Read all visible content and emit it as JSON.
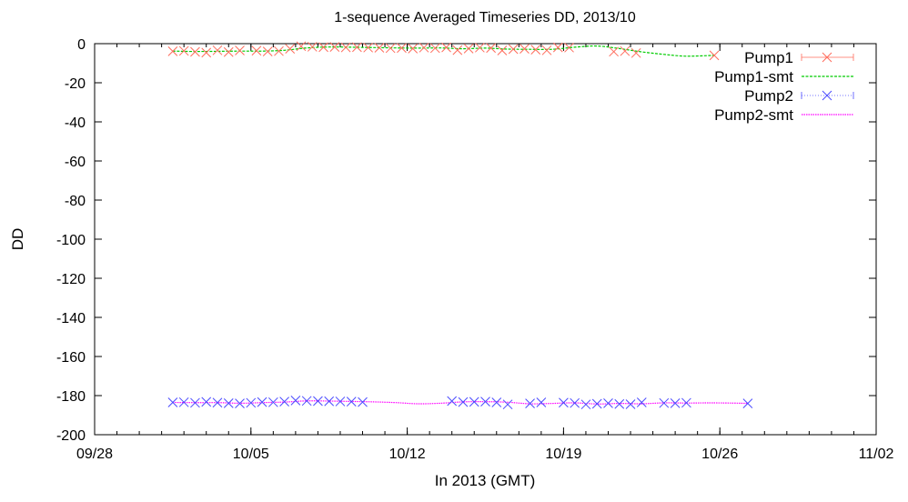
{
  "chart_data": {
    "type": "line",
    "title": "1-sequence Averaged Timeseries DD, 2013/10",
    "xlabel": "In 2013 (GMT)",
    "ylabel": "DD",
    "xlim": [
      "2013-09-28",
      "2013-11-02"
    ],
    "ylim": [
      -200,
      0
    ],
    "x_ticks": [
      {
        "date": "2013-09-28",
        "label": "09/28"
      },
      {
        "date": "2013-10-05",
        "label": "10/05"
      },
      {
        "date": "2013-10-12",
        "label": "10/12"
      },
      {
        "date": "2013-10-19",
        "label": "10/19"
      },
      {
        "date": "2013-10-26",
        "label": "10/26"
      },
      {
        "date": "2013-11-02",
        "label": "11/02"
      }
    ],
    "y_ticks": [
      0,
      -20,
      -40,
      -60,
      -80,
      -100,
      -120,
      -140,
      -160,
      -180,
      -200
    ],
    "grid": false,
    "legend_position": "top-right",
    "series": [
      {
        "name": "Pump1",
        "kind": "points",
        "color": "#ff6b5b",
        "x": [
          "2013-10-01 12:00",
          "2013-10-02 00:00",
          "2013-10-02 12:00",
          "2013-10-03 00:00",
          "2013-10-03 12:00",
          "2013-10-04 00:00",
          "2013-10-04 12:00",
          "2013-10-05 06:00",
          "2013-10-05 18:00",
          "2013-10-06 06:00",
          "2013-10-06 18:00",
          "2013-10-07 06:00",
          "2013-10-07 18:00",
          "2013-10-08 06:00",
          "2013-10-08 18:00",
          "2013-10-09 06:00",
          "2013-10-09 18:00",
          "2013-10-10 06:00",
          "2013-10-10 18:00",
          "2013-10-11 06:00",
          "2013-10-11 18:00",
          "2013-10-12 06:00",
          "2013-10-12 18:00",
          "2013-10-13 06:00",
          "2013-10-13 18:00",
          "2013-10-14 06:00",
          "2013-10-14 18:00",
          "2013-10-15 06:00",
          "2013-10-15 18:00",
          "2013-10-16 06:00",
          "2013-10-16 18:00",
          "2013-10-17 06:00",
          "2013-10-17 18:00",
          "2013-10-18 06:00",
          "2013-10-18 18:00",
          "2013-10-19 06:00",
          "2013-10-21 06:00",
          "2013-10-21 18:00",
          "2013-10-22 06:00",
          "2013-10-25 18:00"
        ],
        "y": [
          -3.9,
          -3.7,
          -4.2,
          -4.6,
          -3.4,
          -4.3,
          -3.5,
          -3.6,
          -4.0,
          -3.8,
          -2.6,
          -1.3,
          -1.6,
          -1.8,
          -1.7,
          -1.9,
          -1.8,
          -2.0,
          -2.1,
          -2.3,
          -2.2,
          -2.5,
          -2.0,
          -2.3,
          -1.9,
          -3.3,
          -2.5,
          -2.0,
          -2.2,
          -3.5,
          -2.8,
          -2.6,
          -3.1,
          -3.4,
          -1.9,
          -2.0,
          -4.1,
          -3.8,
          -4.8,
          -6.0
        ]
      },
      {
        "name": "Pump1-smt",
        "kind": "line",
        "color": "#00cc00",
        "x": [
          "2013-10-01 12:00",
          "2013-10-02 12:00",
          "2013-10-03 12:00",
          "2013-10-04 12:00",
          "2013-10-05 12:00",
          "2013-10-06 12:00",
          "2013-10-07 12:00",
          "2013-10-08 12:00",
          "2013-10-09 12:00",
          "2013-10-10 12:00",
          "2013-10-11 12:00",
          "2013-10-12 12:00",
          "2013-10-13 12:00",
          "2013-10-14 12:00",
          "2013-10-15 12:00",
          "2013-10-16 12:00",
          "2013-10-17 12:00",
          "2013-10-18 12:00",
          "2013-10-19 12:00",
          "2013-10-20 12:00",
          "2013-10-21 12:00",
          "2013-10-22 12:00",
          "2013-10-23 12:00",
          "2013-10-24 12:00",
          "2013-10-25 18:00"
        ],
        "y": [
          -3.8,
          -4.0,
          -3.9,
          -3.8,
          -3.8,
          -3.4,
          -2.2,
          -1.7,
          -1.8,
          -2.0,
          -2.2,
          -2.3,
          -2.2,
          -2.6,
          -2.3,
          -2.8,
          -2.9,
          -2.9,
          -1.8,
          -1.2,
          -2.5,
          -4.2,
          -5.5,
          -6.4,
          -6.0
        ]
      },
      {
        "name": "Pump2",
        "kind": "points",
        "color": "#4b4bff",
        "x": [
          "2013-10-01 12:00",
          "2013-10-02 00:00",
          "2013-10-02 12:00",
          "2013-10-03 00:00",
          "2013-10-03 12:00",
          "2013-10-04 00:00",
          "2013-10-04 12:00",
          "2013-10-05 00:00",
          "2013-10-05 12:00",
          "2013-10-06 00:00",
          "2013-10-06 12:00",
          "2013-10-07 00:00",
          "2013-10-07 12:00",
          "2013-10-08 00:00",
          "2013-10-08 12:00",
          "2013-10-09 00:00",
          "2013-10-09 12:00",
          "2013-10-10 00:00",
          "2013-10-14 00:00",
          "2013-10-14 12:00",
          "2013-10-15 00:00",
          "2013-10-15 12:00",
          "2013-10-16 00:00",
          "2013-10-16 12:00",
          "2013-10-17 12:00",
          "2013-10-18 00:00",
          "2013-10-19 00:00",
          "2013-10-19 12:00",
          "2013-10-20 00:00",
          "2013-10-20 12:00",
          "2013-10-21 00:00",
          "2013-10-21 12:00",
          "2013-10-22 00:00",
          "2013-10-22 12:00",
          "2013-10-23 12:00",
          "2013-10-24 00:00",
          "2013-10-24 12:00",
          "2013-10-27 06:00"
        ],
        "y": [
          -183.5,
          -183.4,
          -183.7,
          -183.2,
          -183.6,
          -183.9,
          -184.0,
          -183.7,
          -183.3,
          -183.4,
          -183.1,
          -182.5,
          -182.7,
          -182.8,
          -182.9,
          -183.0,
          -183.1,
          -183.3,
          -182.8,
          -183.3,
          -183.2,
          -183.1,
          -183.5,
          -184.5,
          -184.0,
          -183.5,
          -183.6,
          -183.8,
          -184.5,
          -184.2,
          -183.9,
          -184.3,
          -184.4,
          -183.5,
          -183.8,
          -183.9,
          -183.7,
          -184.0
        ]
      },
      {
        "name": "Pump2-smt",
        "kind": "line",
        "color": "#ff00ff",
        "x": [
          "2013-10-01 12:00",
          "2013-10-02 12:00",
          "2013-10-03 12:00",
          "2013-10-04 12:00",
          "2013-10-05 12:00",
          "2013-10-06 12:00",
          "2013-10-07 12:00",
          "2013-10-08 12:00",
          "2013-10-09 12:00",
          "2013-10-10 12:00",
          "2013-10-11 12:00",
          "2013-10-12 12:00",
          "2013-10-13 12:00",
          "2013-10-14 12:00",
          "2013-10-15 12:00",
          "2013-10-16 12:00",
          "2013-10-17 12:00",
          "2013-10-18 12:00",
          "2013-10-19 12:00",
          "2013-10-20 12:00",
          "2013-10-21 12:00",
          "2013-10-22 12:00",
          "2013-10-23 12:00",
          "2013-10-24 12:00",
          "2013-10-25 12:00",
          "2013-10-26 12:00",
          "2013-10-27 06:00"
        ],
        "y": [
          -183.5,
          -183.6,
          -183.6,
          -183.9,
          -183.6,
          -183.3,
          -182.7,
          -182.8,
          -183.0,
          -183.2,
          -183.6,
          -184.2,
          -183.9,
          -183.2,
          -183.1,
          -183.4,
          -184.2,
          -184.0,
          -183.7,
          -184.3,
          -184.0,
          -184.2,
          -183.7,
          -183.8,
          -183.7,
          -183.8,
          -184.0
        ]
      }
    ]
  }
}
